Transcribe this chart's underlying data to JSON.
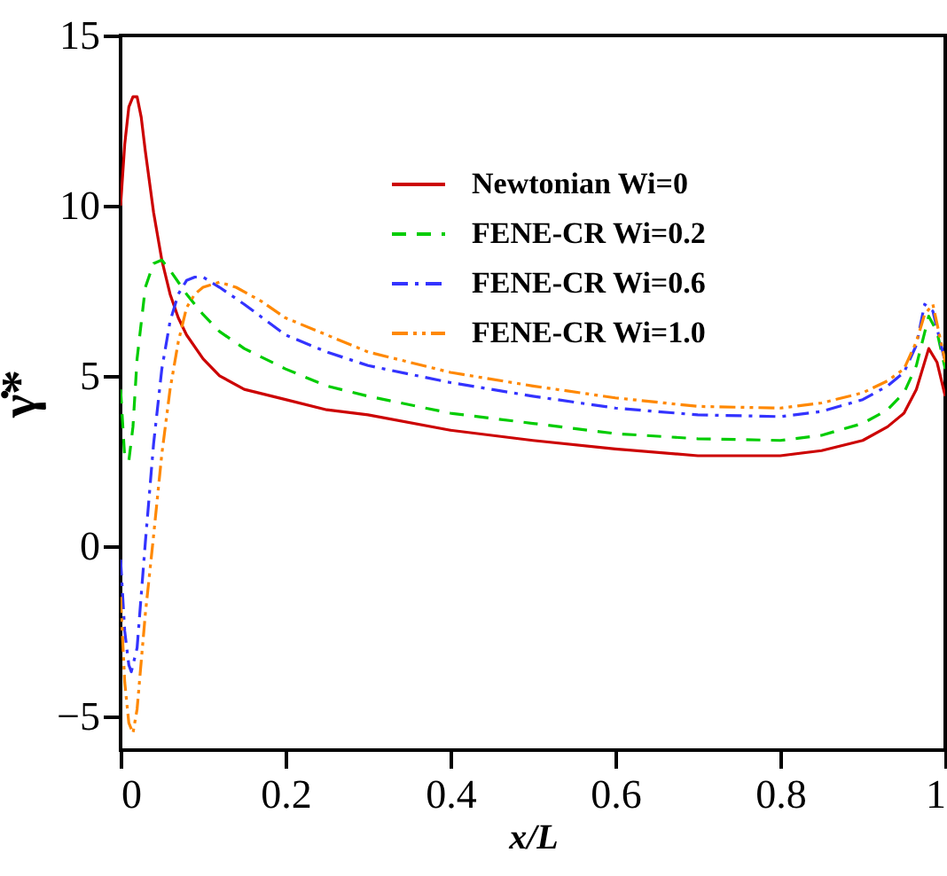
{
  "chart_data": {
    "type": "line",
    "xlabel": "x/L",
    "ylabel": "γ̇*",
    "xlim": [
      0,
      1
    ],
    "ylim": [
      -6,
      15
    ],
    "xticks": [
      0,
      0.2,
      0.4,
      0.6,
      0.8,
      1
    ],
    "yticks": [
      -5,
      0,
      5,
      10,
      15
    ],
    "grid": false,
    "legend": "top right",
    "series": [
      {
        "name": "Newtonian Wi=0",
        "color": "#cc0000",
        "line_style": "solid",
        "x": [
          0,
          0.005,
          0.01,
          0.015,
          0.02,
          0.025,
          0.03,
          0.04,
          0.05,
          0.06,
          0.07,
          0.08,
          0.1,
          0.12,
          0.15,
          0.2,
          0.25,
          0.3,
          0.4,
          0.5,
          0.6,
          0.7,
          0.8,
          0.85,
          0.9,
          0.93,
          0.95,
          0.965,
          0.98,
          0.99,
          1
        ],
        "values": [
          10,
          11.8,
          12.9,
          13.2,
          13.2,
          12.6,
          11.6,
          9.8,
          8.4,
          7.4,
          6.7,
          6.2,
          5.5,
          5.0,
          4.6,
          4.3,
          4.0,
          3.85,
          3.4,
          3.1,
          2.85,
          2.65,
          2.65,
          2.8,
          3.1,
          3.5,
          3.9,
          4.6,
          5.8,
          5.4,
          4.4
        ]
      },
      {
        "name": "FENE-CR Wi=0.2",
        "color": "#00cc00",
        "line_style": "dashed",
        "x": [
          0,
          0.005,
          0.01,
          0.015,
          0.02,
          0.03,
          0.04,
          0.05,
          0.06,
          0.08,
          0.1,
          0.12,
          0.15,
          0.2,
          0.25,
          0.3,
          0.4,
          0.5,
          0.6,
          0.7,
          0.8,
          0.85,
          0.9,
          0.93,
          0.95,
          0.965,
          0.98,
          0.99,
          1
        ],
        "values": [
          4.6,
          2.6,
          2.5,
          3.5,
          5.5,
          7.6,
          8.3,
          8.4,
          8.1,
          7.4,
          6.8,
          6.3,
          5.8,
          5.2,
          4.7,
          4.4,
          3.9,
          3.6,
          3.3,
          3.15,
          3.1,
          3.25,
          3.6,
          4.0,
          4.5,
          5.3,
          6.75,
          6.3,
          5.2
        ]
      },
      {
        "name": "FENE-CR Wi=0.6",
        "color": "#3333ff",
        "line_style": "dashdot",
        "x": [
          0,
          0.005,
          0.01,
          0.013,
          0.02,
          0.03,
          0.04,
          0.05,
          0.06,
          0.07,
          0.08,
          0.09,
          0.1,
          0.12,
          0.15,
          0.2,
          0.25,
          0.3,
          0.4,
          0.5,
          0.6,
          0.7,
          0.8,
          0.85,
          0.9,
          0.93,
          0.95,
          0.965,
          0.975,
          0.985,
          1
        ],
        "values": [
          -0.4,
          -2.5,
          -3.5,
          -3.7,
          -3.0,
          0.1,
          3.0,
          5.2,
          6.6,
          7.4,
          7.8,
          7.9,
          7.9,
          7.6,
          7.1,
          6.2,
          5.7,
          5.3,
          4.8,
          4.4,
          4.05,
          3.85,
          3.8,
          3.95,
          4.3,
          4.7,
          5.1,
          5.9,
          7.1,
          6.9,
          5.4
        ]
      },
      {
        "name": "FENE-CR Wi=1.0",
        "color": "#ff8800",
        "line_style": "dashdotdot",
        "x": [
          0,
          0.005,
          0.01,
          0.015,
          0.02,
          0.03,
          0.04,
          0.05,
          0.06,
          0.07,
          0.08,
          0.09,
          0.1,
          0.12,
          0.14,
          0.17,
          0.2,
          0.25,
          0.3,
          0.4,
          0.5,
          0.6,
          0.7,
          0.8,
          0.85,
          0.9,
          0.93,
          0.95,
          0.965,
          0.975,
          0.985,
          1
        ],
        "values": [
          -1.5,
          -4.0,
          -5.2,
          -5.5,
          -4.8,
          -2.0,
          0.3,
          2.7,
          4.6,
          6.0,
          7.0,
          7.4,
          7.6,
          7.75,
          7.6,
          7.2,
          6.7,
          6.2,
          5.7,
          5.1,
          4.7,
          4.35,
          4.1,
          4.05,
          4.2,
          4.5,
          4.85,
          5.2,
          6.0,
          6.8,
          7.1,
          5.4
        ]
      }
    ]
  }
}
